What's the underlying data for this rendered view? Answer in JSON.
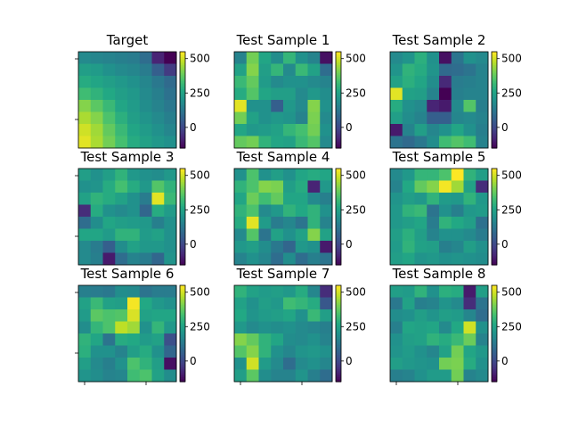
{
  "chart_data": {
    "type": "heatmap",
    "colormap": "viridis",
    "grid": false,
    "colorbar": {
      "vmin": -150,
      "vmax": 550,
      "ticks": [
        0,
        250,
        500
      ],
      "tick_labels": [
        "0",
        "250",
        "500"
      ]
    },
    "panels": [
      {
        "title": "Target",
        "values": [
          [
            180,
            170,
            160,
            150,
            140,
            100,
            -80,
            -150
          ],
          [
            240,
            230,
            200,
            180,
            170,
            140,
            60,
            -30
          ],
          [
            280,
            260,
            240,
            220,
            200,
            170,
            130,
            90
          ],
          [
            330,
            300,
            270,
            240,
            220,
            180,
            150,
            110
          ],
          [
            420,
            370,
            320,
            260,
            230,
            190,
            160,
            130
          ],
          [
            460,
            420,
            350,
            290,
            240,
            210,
            180,
            150
          ],
          [
            500,
            450,
            380,
            320,
            260,
            230,
            200,
            170
          ],
          [
            520,
            460,
            400,
            340,
            280,
            250,
            220,
            200
          ]
        ]
      },
      {
        "title": "Test Sample 1",
        "values": [
          [
            160,
            400,
            260,
            190,
            310,
            200,
            160,
            -120
          ],
          [
            250,
            420,
            240,
            310,
            180,
            320,
            250,
            100
          ],
          [
            320,
            380,
            230,
            180,
            200,
            200,
            180,
            160
          ],
          [
            280,
            360,
            260,
            240,
            240,
            180,
            220,
            190
          ],
          [
            520,
            200,
            200,
            60,
            220,
            180,
            420,
            200
          ],
          [
            400,
            250,
            200,
            220,
            210,
            160,
            410,
            180
          ],
          [
            260,
            220,
            230,
            250,
            310,
            340,
            400,
            200
          ],
          [
            380,
            400,
            300,
            260,
            250,
            320,
            360,
            180
          ]
        ]
      },
      {
        "title": "Test Sample 2",
        "values": [
          [
            180,
            210,
            290,
            200,
            -120,
            120,
            200,
            180
          ],
          [
            210,
            300,
            280,
            210,
            90,
            100,
            120,
            160
          ],
          [
            250,
            290,
            260,
            190,
            -70,
            140,
            150,
            160
          ],
          [
            520,
            250,
            240,
            160,
            -150,
            150,
            160,
            160
          ],
          [
            280,
            200,
            180,
            -80,
            -100,
            180,
            360,
            150
          ],
          [
            240,
            190,
            160,
            60,
            60,
            170,
            180,
            160
          ],
          [
            -100,
            160,
            240,
            170,
            200,
            260,
            200,
            150
          ],
          [
            120,
            90,
            130,
            190,
            330,
            360,
            330,
            160
          ]
        ]
      },
      {
        "title": "Test Sample 3",
        "values": [
          [
            240,
            200,
            240,
            300,
            220,
            200,
            190,
            220
          ],
          [
            200,
            210,
            280,
            340,
            280,
            220,
            360,
            300
          ],
          [
            250,
            300,
            280,
            250,
            200,
            140,
            520,
            320
          ],
          [
            -60,
            280,
            200,
            180,
            200,
            80,
            280,
            230
          ],
          [
            100,
            190,
            260,
            240,
            230,
            220,
            150,
            200
          ],
          [
            260,
            260,
            230,
            300,
            300,
            230,
            250,
            200
          ],
          [
            180,
            140,
            60,
            190,
            250,
            220,
            220,
            200
          ],
          [
            180,
            150,
            -100,
            100,
            160,
            140,
            80,
            210
          ]
        ]
      },
      {
        "title": "Test Sample 4",
        "values": [
          [
            200,
            350,
            200,
            240,
            200,
            260,
            280,
            260
          ],
          [
            300,
            350,
            420,
            410,
            240,
            280,
            -80,
            220
          ],
          [
            260,
            390,
            330,
            380,
            260,
            260,
            180,
            150
          ],
          [
            300,
            350,
            180,
            220,
            300,
            270,
            300,
            200
          ],
          [
            280,
            520,
            230,
            140,
            170,
            120,
            300,
            160
          ],
          [
            180,
            360,
            120,
            250,
            200,
            250,
            420,
            250
          ],
          [
            220,
            240,
            190,
            130,
            80,
            220,
            200,
            -100
          ],
          [
            160,
            200,
            170,
            100,
            190,
            100,
            150,
            120
          ]
        ]
      },
      {
        "title": "Test Sample 5",
        "values": [
          [
            180,
            220,
            310,
            310,
            350,
            550,
            300,
            240
          ],
          [
            160,
            270,
            380,
            420,
            540,
            450,
            250,
            -60
          ],
          [
            210,
            240,
            220,
            300,
            230,
            220,
            300,
            220
          ],
          [
            220,
            300,
            320,
            120,
            200,
            150,
            220,
            230
          ],
          [
            220,
            240,
            260,
            140,
            300,
            270,
            240,
            110
          ],
          [
            240,
            290,
            240,
            160,
            200,
            200,
            180,
            140
          ],
          [
            230,
            300,
            250,
            240,
            150,
            170,
            240,
            200
          ],
          [
            240,
            260,
            210,
            220,
            200,
            210,
            200,
            190
          ]
        ]
      },
      {
        "title": "Test Sample 6",
        "values": [
          [
            150,
            140,
            130,
            190,
            180,
            120,
            140,
            140
          ],
          [
            250,
            320,
            250,
            240,
            540,
            270,
            220,
            200
          ],
          [
            230,
            370,
            350,
            360,
            510,
            250,
            260,
            260
          ],
          [
            190,
            310,
            350,
            480,
            450,
            200,
            310,
            220
          ],
          [
            300,
            260,
            120,
            280,
            270,
            230,
            250,
            20
          ],
          [
            290,
            200,
            200,
            160,
            240,
            280,
            200,
            80
          ],
          [
            240,
            180,
            150,
            200,
            350,
            300,
            240,
            -120
          ],
          [
            210,
            190,
            160,
            170,
            330,
            350,
            250,
            190
          ]
        ]
      },
      {
        "title": "Test Sample 7",
        "values": [
          [
            300,
            250,
            230,
            240,
            220,
            280,
            170,
            -60
          ],
          [
            250,
            200,
            240,
            220,
            330,
            310,
            280,
            40
          ],
          [
            270,
            210,
            230,
            240,
            260,
            200,
            320,
            240
          ],
          [
            220,
            180,
            200,
            190,
            200,
            180,
            170,
            150
          ],
          [
            420,
            380,
            300,
            260,
            190,
            180,
            200,
            160
          ],
          [
            360,
            420,
            300,
            200,
            170,
            210,
            220,
            200
          ],
          [
            200,
            500,
            230,
            180,
            100,
            180,
            200,
            170
          ],
          [
            240,
            370,
            190,
            160,
            160,
            210,
            150,
            100
          ]
        ]
      },
      {
        "title": "Test Sample 8",
        "values": [
          [
            240,
            230,
            300,
            200,
            290,
            280,
            -100,
            240
          ],
          [
            130,
            250,
            150,
            160,
            210,
            180,
            -60,
            120
          ],
          [
            190,
            200,
            240,
            210,
            240,
            230,
            170,
            100
          ],
          [
            150,
            260,
            250,
            260,
            180,
            270,
            500,
            200
          ],
          [
            200,
            240,
            250,
            300,
            280,
            320,
            390,
            160
          ],
          [
            210,
            230,
            200,
            170,
            250,
            400,
            260,
            220
          ],
          [
            240,
            220,
            210,
            200,
            400,
            410,
            280,
            200
          ],
          [
            150,
            160,
            200,
            230,
            230,
            400,
            160,
            180
          ]
        ]
      }
    ]
  }
}
